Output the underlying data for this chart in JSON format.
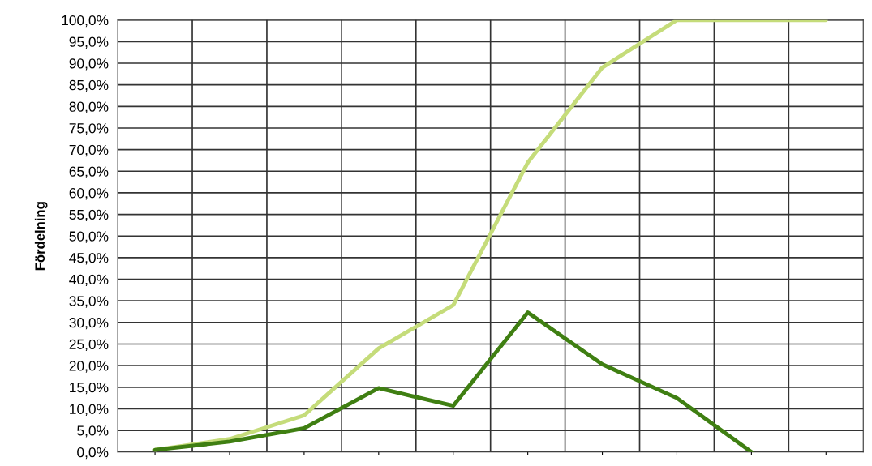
{
  "chart_data": {
    "type": "line",
    "ylabel": "Fördelning",
    "categories": [
      null,
      null,
      null,
      null,
      null,
      null,
      null,
      null,
      null,
      null
    ],
    "series": [
      {
        "color": "#c5dc7a",
        "values": [
          0.5,
          3,
          8.5,
          24,
          34,
          67,
          89,
          100,
          100,
          100
        ]
      },
      {
        "color": "#3f7f12",
        "values": [
          0.5,
          2.4,
          5.5,
          14.8,
          10.7,
          32.3,
          20.3,
          12.5,
          0,
          null
        ]
      }
    ],
    "ylim": [
      0,
      100
    ],
    "yticks": [
      {
        "value": 0,
        "label": "0,0%"
      },
      {
        "value": 5,
        "label": "5,0%"
      },
      {
        "value": 10,
        "label": "10,0%"
      },
      {
        "value": 15,
        "label": "15,0%"
      },
      {
        "value": 20,
        "label": "20,0%"
      },
      {
        "value": 25,
        "label": "25,0%"
      },
      {
        "value": 30,
        "label": "30,0%"
      },
      {
        "value": 35,
        "label": "35,0%"
      },
      {
        "value": 40,
        "label": "40,0%"
      },
      {
        "value": 45,
        "label": "45,0%"
      },
      {
        "value": 50,
        "label": "50,0%"
      },
      {
        "value": 55,
        "label": "55,0%"
      },
      {
        "value": 60,
        "label": "60,0%"
      },
      {
        "value": 65,
        "label": "65,0%"
      },
      {
        "value": 70,
        "label": "70,0%"
      },
      {
        "value": 75,
        "label": "75,0%"
      },
      {
        "value": 80,
        "label": "80,0%"
      },
      {
        "value": 85,
        "label": "85,0%"
      },
      {
        "value": 90,
        "label": "90,0%"
      },
      {
        "value": 95,
        "label": "95,0%"
      },
      {
        "value": 100,
        "label": "100,0%"
      }
    ],
    "grid": true,
    "marker": "none",
    "line_style": "solid"
  }
}
